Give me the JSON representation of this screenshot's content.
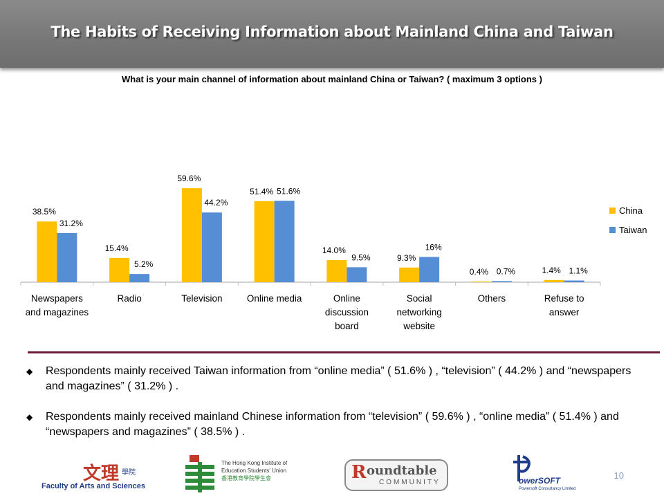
{
  "header": {
    "title": "The Habits of Receiving Information about Mainland China and Taiwan"
  },
  "question": "What is your main channel of information about mainland China or Taiwan? ( maximum 3 options )",
  "chart_data": {
    "type": "bar",
    "categories": [
      "Newspapers and magazines",
      "Radio",
      "Television",
      "Online media",
      "Online discussion board",
      "Social networking website",
      "Others",
      "Refuse to answer"
    ],
    "category_lines": [
      [
        "Newspapers",
        "and magazines"
      ],
      [
        "Radio"
      ],
      [
        "Television"
      ],
      [
        "Online media"
      ],
      [
        "Online",
        "discussion",
        "board"
      ],
      [
        "Social",
        "networking",
        "website"
      ],
      [
        "Others"
      ],
      [
        "Refuse to",
        "answer"
      ]
    ],
    "series": [
      {
        "name": "China",
        "values": [
          38.5,
          15.4,
          59.6,
          51.4,
          14.0,
          9.3,
          0.4,
          1.4
        ],
        "labels": [
          "38.5%",
          "15.4%",
          "59.6%",
          "51.4%",
          "14.0%",
          "9.3%",
          "0.4%",
          "1.4%"
        ],
        "color": "#FFC000"
      },
      {
        "name": "Taiwan",
        "values": [
          31.2,
          5.2,
          44.2,
          51.6,
          9.5,
          16,
          0.7,
          1.1
        ],
        "labels": [
          "31.2%",
          "5.2%",
          "44.2%",
          "51.6%",
          "9.5%",
          "16%",
          "0.7%",
          "1.1%"
        ],
        "color": "#558ED5"
      }
    ],
    "ylim": [
      0,
      70
    ],
    "grid": false,
    "legend_position": "right"
  },
  "bullets": [
    "Respondents mainly received Taiwan information from “online media” ( 51.6% ) , “television” ( 44.2% ) and “newspapers and magazines” ( 31.2% ) .",
    "Respondents mainly received mainland Chinese information from “television” ( 59.6% ) , “online media” ( 51.4% ) and “newspapers and magazines” ( 38.5% ) ."
  ],
  "footer": {
    "faculty_label": "Faculty of Arts and Sciences",
    "faculty_chinese": "文理",
    "faculty_chinese_small": "學院",
    "union_lines": [
      "The Hong Kong Institute of",
      "Education Students' Union",
      "香港教育學院學生會"
    ],
    "roundtable_main": "oundtable",
    "roundtable_sub": "COMMUNITY",
    "powersoft_main": "owerSOFT",
    "powersoft_sub": "Powersoft Consultancy Limited",
    "page_number": "10"
  }
}
